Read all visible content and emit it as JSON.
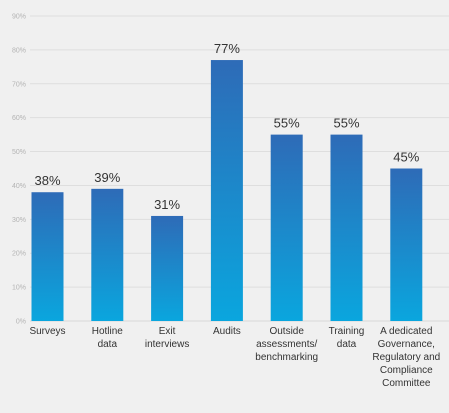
{
  "colors": {
    "background": "#f0f0f0",
    "bar_top": "#2e6bb7",
    "bar_bottom": "#0aa6de",
    "text": "#333333",
    "tick_text": "#b3b3b3",
    "grid": "#dedede"
  },
  "chart_data": {
    "type": "bar",
    "title": "",
    "xlabel": "",
    "ylabel": "",
    "ylim": [
      0,
      90
    ],
    "yticks": [
      0,
      10,
      20,
      30,
      40,
      50,
      60,
      70,
      80,
      90
    ],
    "ytick_labels": [
      "0%",
      "10%",
      "20%",
      "30%",
      "40%",
      "50%",
      "60%",
      "70%",
      "80%",
      "90%"
    ],
    "grid": true,
    "categories": [
      [
        "Surveys"
      ],
      [
        "Hotline",
        "data"
      ],
      [
        "Exit",
        "interviews"
      ],
      [
        "Audits"
      ],
      [
        "Outside",
        "assessments/",
        "benchmarking"
      ],
      [
        "Training",
        "data"
      ],
      [
        "A dedicated",
        "Governance,",
        "Regulatory and",
        "Compliance",
        "Committee"
      ]
    ],
    "values": [
      38,
      39,
      31,
      77,
      55,
      55,
      45
    ],
    "value_labels": [
      "38%",
      "39%",
      "31%",
      "77%",
      "55%",
      "55%",
      "45%"
    ]
  }
}
